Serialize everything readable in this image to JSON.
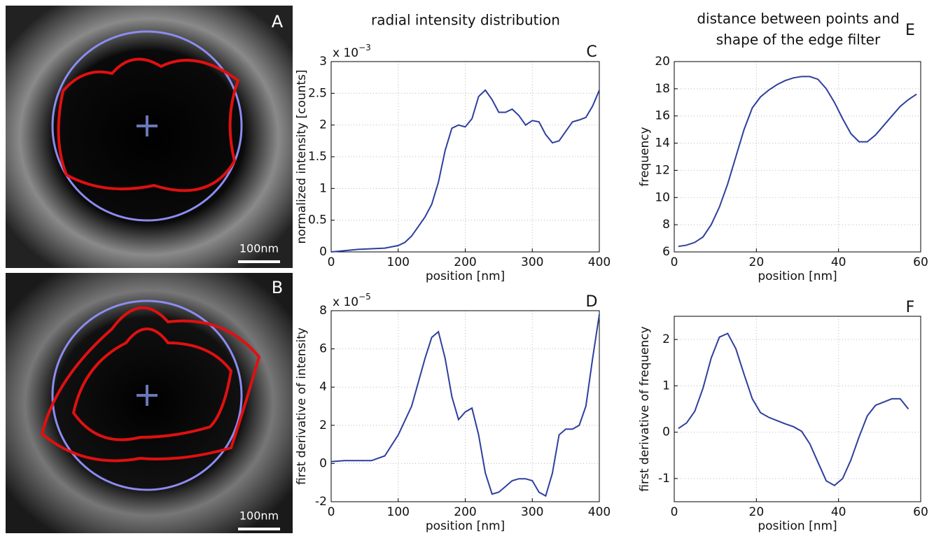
{
  "headers": [
    "radial intensity distribution",
    "distance between points and",
    "shape of the edge filter"
  ],
  "images": [
    {
      "label": "A",
      "scale_bar": "100nm"
    },
    {
      "label": "B",
      "scale_bar": "100nm"
    }
  ],
  "chart_data": [
    {
      "type": "line",
      "panel": "C",
      "xlabel": "position [nm]",
      "ylabel": "normalized intensity [counts]",
      "y_multiplier": {
        "base": "x 10",
        "exponent": "−3"
      },
      "color": "#2e3f9e",
      "grid": true,
      "xlim": [
        0,
        400
      ],
      "ylim": [
        0,
        3
      ],
      "xticks": [
        0,
        100,
        200,
        300,
        400
      ],
      "yticks": [
        0,
        0.5,
        1,
        1.5,
        2,
        2.5,
        3
      ],
      "x": [
        0,
        20,
        40,
        60,
        80,
        100,
        110,
        120,
        130,
        140,
        150,
        160,
        170,
        180,
        190,
        200,
        210,
        220,
        230,
        240,
        250,
        260,
        270,
        280,
        290,
        300,
        310,
        320,
        330,
        340,
        350,
        360,
        370,
        380,
        390,
        400
      ],
      "values": [
        0,
        0.02,
        0.04,
        0.05,
        0.06,
        0.1,
        0.15,
        0.25,
        0.4,
        0.55,
        0.75,
        1.1,
        1.6,
        1.95,
        2.0,
        1.97,
        2.1,
        2.45,
        2.55,
        2.4,
        2.2,
        2.2,
        2.25,
        2.15,
        2.0,
        2.07,
        2.05,
        1.85,
        1.72,
        1.75,
        1.9,
        2.05,
        2.08,
        2.12,
        2.3,
        2.55
      ]
    },
    {
      "type": "line",
      "panel": "D",
      "xlabel": "position [nm]",
      "ylabel": "first derivative of intensity",
      "y_multiplier": {
        "base": "x 10",
        "exponent": "−5"
      },
      "color": "#2e3f9e",
      "grid": true,
      "xlim": [
        0,
        400
      ],
      "ylim": [
        -2,
        8
      ],
      "xticks": [
        0,
        100,
        200,
        300,
        400
      ],
      "yticks": [
        -2,
        0,
        2,
        4,
        6,
        8
      ],
      "x": [
        0,
        20,
        40,
        60,
        80,
        100,
        120,
        140,
        150,
        160,
        170,
        180,
        190,
        200,
        210,
        220,
        230,
        240,
        250,
        260,
        270,
        280,
        290,
        300,
        310,
        320,
        330,
        340,
        350,
        360,
        370,
        380,
        390,
        400
      ],
      "values": [
        0.1,
        0.15,
        0.15,
        0.15,
        0.4,
        1.5,
        3,
        5.5,
        6.6,
        6.9,
        5.5,
        3.5,
        2.3,
        2.7,
        2.9,
        1.5,
        -0.5,
        -1.6,
        -1.5,
        -1.2,
        -0.9,
        -0.8,
        -0.8,
        -0.9,
        -1.5,
        -1.7,
        -0.5,
        1.5,
        1.8,
        1.8,
        2,
        3,
        5.5,
        7.8
      ]
    },
    {
      "type": "line",
      "panel": "E",
      "xlabel": "position [nm]",
      "ylabel": "frequency",
      "color": "#2e3f9e",
      "grid": true,
      "xlim": [
        0,
        60
      ],
      "ylim": [
        6,
        20
      ],
      "xticks": [
        0,
        20,
        40,
        60
      ],
      "yticks": [
        6,
        8,
        10,
        12,
        14,
        16,
        18,
        20
      ],
      "x": [
        1,
        3,
        5,
        7,
        9,
        11,
        13,
        15,
        17,
        19,
        21,
        23,
        25,
        27,
        29,
        31,
        33,
        35,
        37,
        39,
        41,
        43,
        45,
        47,
        49,
        51,
        53,
        55,
        57,
        59
      ],
      "values": [
        6.4,
        6.5,
        6.7,
        7.1,
        8.0,
        9.3,
        11.0,
        13.0,
        15.0,
        16.6,
        17.4,
        17.9,
        18.3,
        18.6,
        18.8,
        18.9,
        18.9,
        18.7,
        18.0,
        17.0,
        15.8,
        14.7,
        14.1,
        14.1,
        14.6,
        15.3,
        16.0,
        16.7,
        17.2,
        17.6
      ]
    },
    {
      "type": "line",
      "panel": "F",
      "xlabel": "position [nm]",
      "ylabel": "first derivative of frequency",
      "color": "#2e3f9e",
      "grid": true,
      "xlim": [
        0,
        60
      ],
      "ylim": [
        -1.5,
        2.5
      ],
      "xticks": [
        0,
        20,
        40,
        60
      ],
      "yticks": [
        -1,
        0,
        1,
        2
      ],
      "x": [
        1,
        3,
        5,
        7,
        9,
        11,
        13,
        15,
        17,
        19,
        21,
        23,
        25,
        27,
        29,
        31,
        33,
        35,
        37,
        39,
        41,
        43,
        45,
        47,
        49,
        51,
        53,
        55,
        57
      ],
      "values": [
        0.08,
        0.2,
        0.45,
        0.95,
        1.6,
        2.05,
        2.13,
        1.8,
        1.25,
        0.72,
        0.42,
        0.32,
        0.25,
        0.18,
        0.12,
        0.02,
        -0.25,
        -0.65,
        -1.05,
        -1.15,
        -1.0,
        -0.6,
        -0.1,
        0.35,
        0.58,
        0.65,
        0.72,
        0.72,
        0.5
      ]
    }
  ]
}
